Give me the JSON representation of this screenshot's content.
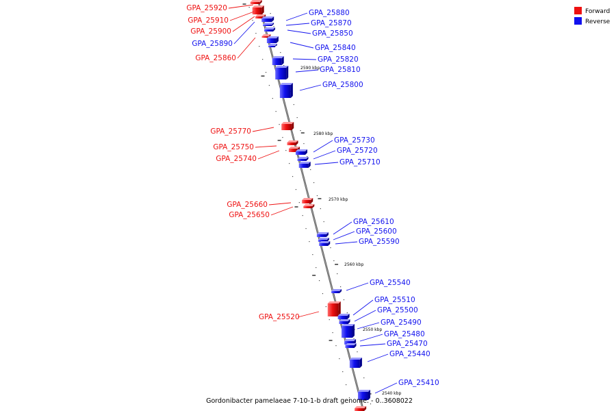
{
  "caption": "Gordonibacter pamelaeae 7-10-1-b draft genome.  - 0..3608022",
  "legend": [
    {
      "label": "Forward",
      "color": "#ee1111"
    },
    {
      "label": "Reverse",
      "color": "#1111ee"
    }
  ],
  "ticks": [
    "2590 kbp",
    "2580 kbp",
    "2570 kbp",
    "2560 kbp",
    "2550 kbp",
    "2540 kbp"
  ],
  "forward_genes": [
    "GPA_25920",
    "GPA_25910",
    "GPA_25900",
    "GPA_25860",
    "GPA_25770",
    "GPA_25750",
    "GPA_25740",
    "GPA_25660",
    "GPA_25650",
    "GPA_25520"
  ],
  "reverse_genes": [
    "GPA_25880",
    "GPA_25870",
    "GPA_25850",
    "GPA_25890",
    "GPA_25840",
    "GPA_25820",
    "GPA_25810",
    "GPA_25800",
    "GPA_25730",
    "GPA_25720",
    "GPA_25710",
    "GPA_25610",
    "GPA_25600",
    "GPA_25590",
    "GPA_25540",
    "GPA_25510",
    "GPA_25500",
    "GPA_25490",
    "GPA_25480",
    "GPA_25470",
    "GPA_25440",
    "GPA_25410"
  ]
}
